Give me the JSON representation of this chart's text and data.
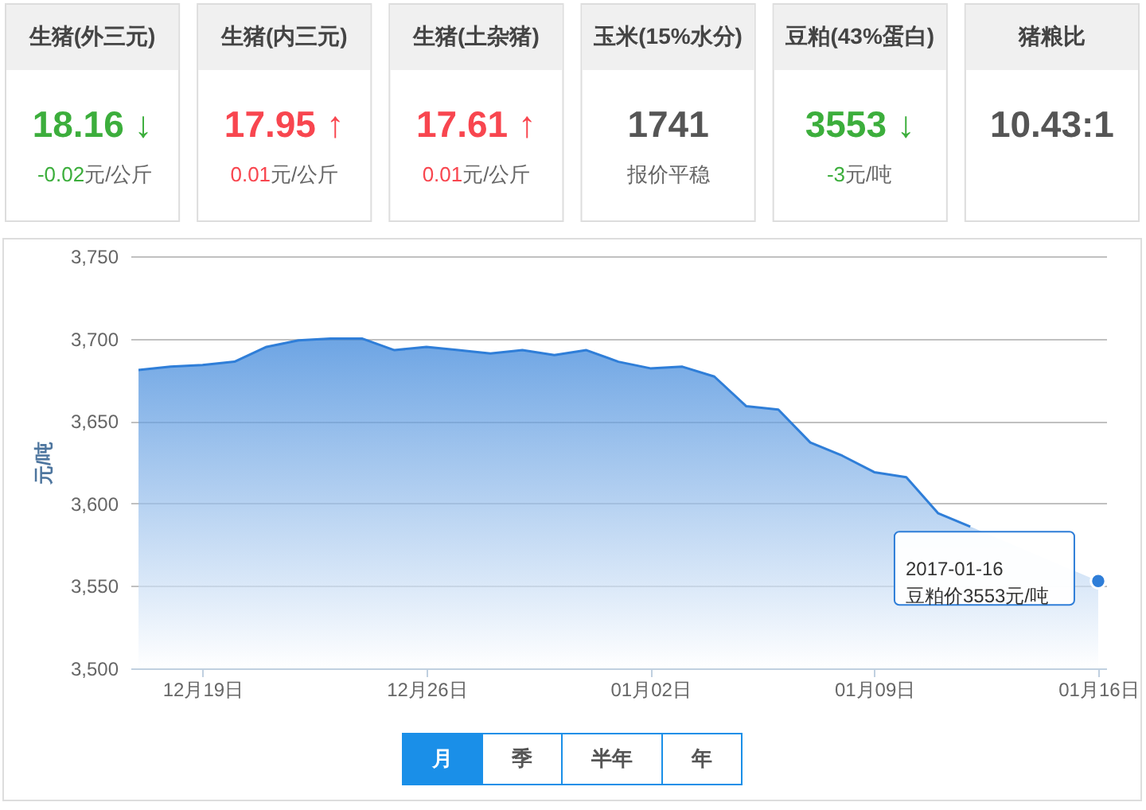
{
  "chart_data": [
    {
      "type": "other",
      "title": "生猪(外三元)",
      "annotations": [
        "18.16 ↓",
        "-0.02",
        "元/公斤"
      ],
      "color": "#3cae3c"
    },
    {
      "type": "other",
      "title": "生猪(内三元)",
      "annotations": [
        "17.95 ↑",
        "0.01",
        "元/公斤"
      ],
      "color": "#f8464f"
    },
    {
      "type": "other",
      "title": "生猪(土杂猪)",
      "annotations": [
        "17.61 ↑",
        "0.01",
        "元/公斤"
      ],
      "color": "#f8464f"
    },
    {
      "type": "other",
      "title": "玉米(15%水分)",
      "annotations": [
        "1741",
        "报价平稳"
      ],
      "color": "#555555"
    },
    {
      "type": "other",
      "title": "豆粕(43%蛋白)",
      "annotations": [
        "3553 ↓",
        "-3",
        "元/吨"
      ],
      "color": "#3cae3c"
    },
    {
      "type": "other",
      "title": "猪粮比",
      "annotations": [
        "10.43:1"
      ],
      "color": "#555555"
    },
    {
      "type": "area",
      "x": [
        "2016-12-17",
        "2016-12-18",
        "2016-12-19",
        "2016-12-20",
        "2016-12-21",
        "2016-12-22",
        "2016-12-23",
        "2016-12-24",
        "2016-12-25",
        "2016-12-26",
        "2016-12-27",
        "2016-12-28",
        "2016-12-29",
        "2016-12-30",
        "2016-12-31",
        "2017-01-01",
        "2017-01-02",
        "2017-01-03",
        "2017-01-04",
        "2017-01-05",
        "2017-01-06",
        "2017-01-07",
        "2017-01-08",
        "2017-01-09",
        "2017-01-10",
        "2017-01-11",
        "2017-01-12",
        "2017-01-13",
        "2017-01-14",
        "2017-01-15",
        "2017-01-16"
      ],
      "values": [
        3681,
        3683,
        3684,
        3686,
        3695,
        3699,
        3700,
        3700,
        3693,
        3695,
        3693,
        3691,
        3693,
        3690,
        3693,
        3686,
        3682,
        3683,
        3677,
        3659,
        3657,
        3637,
        3629,
        3619,
        3616,
        3594,
        3586,
        null,
        null,
        null,
        3553
      ],
      "color": "#2f7ed8",
      "ylabel": "元/吨",
      "xlim": [
        "2016-12-16T18:00",
        "2017-01-16T06:00"
      ],
      "ylim": [
        3500,
        3750
      ],
      "xticks": [
        {
          "value": "2016-12-19",
          "label": "12月19日"
        },
        {
          "value": "2016-12-26",
          "label": "12月26日"
        },
        {
          "value": "2017-01-02",
          "label": "01月02日"
        },
        {
          "value": "2017-01-09",
          "label": "01月09日"
        },
        {
          "value": "2017-01-16",
          "label": "01月16日"
        }
      ],
      "yticks": [
        {
          "value": 3500,
          "label": "3,500"
        },
        {
          "value": 3550,
          "label": "3,550"
        },
        {
          "value": 3600,
          "label": "3,600"
        },
        {
          "value": 3650,
          "label": "3,650"
        },
        {
          "value": 3700,
          "label": "3,700"
        },
        {
          "value": 3750,
          "label": "3,750"
        }
      ],
      "grid": "y",
      "annotations": [
        {
          "text": "2017-01-16\n豆粕价3553元/吨",
          "x": "2017-01-16",
          "y": 3553
        }
      ]
    },
    {
      "type": "other",
      "categories": [
        "月",
        "季",
        "半年",
        "年"
      ],
      "colors": [
        "#1a8fe8",
        "#ffffff",
        "#ffffff",
        "#ffffff"
      ]
    }
  ]
}
